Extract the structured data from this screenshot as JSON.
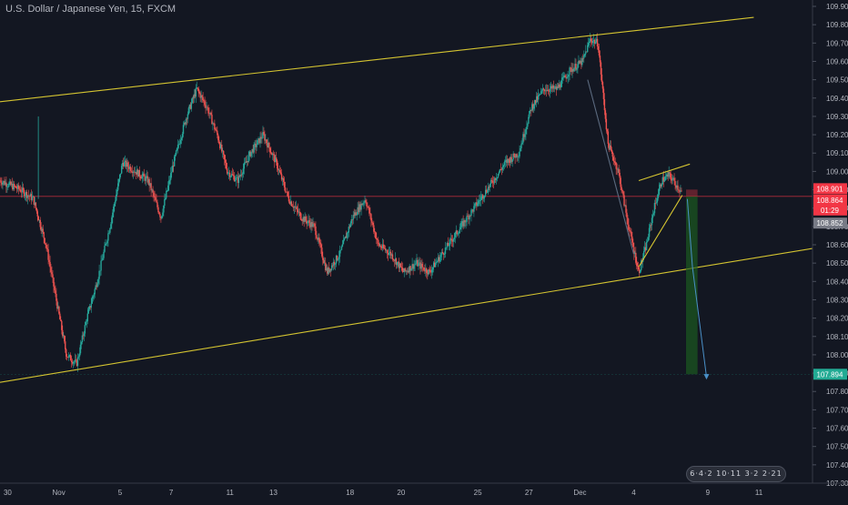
{
  "chart_data": {
    "type": "candlestick",
    "title": "U.S. Dollar / Japanese Yen, 15, FXCM",
    "symbol": "USDJPY",
    "interval": "15",
    "source": "FXCM",
    "ylim": [
      107.3,
      109.95
    ],
    "y_ticks": [
      "109.900",
      "109.800",
      "109.700",
      "109.600",
      "109.500",
      "109.400",
      "109.300",
      "109.200",
      "109.100",
      "109.000",
      "108.900",
      "108.800",
      "108.700",
      "108.600",
      "108.500",
      "108.400",
      "108.300",
      "108.200",
      "108.100",
      "108.000",
      "107.900",
      "107.800",
      "107.700",
      "107.600",
      "107.500",
      "107.400",
      "107.300"
    ],
    "x_tick_labels": [
      "30",
      "Nov",
      "5",
      "7",
      "11",
      "13",
      "18",
      "20",
      "25",
      "27",
      "Dec",
      "4",
      "9",
      "11"
    ],
    "price_markers": [
      {
        "label": "108.901",
        "value": 108.901,
        "color": "#f23645"
      },
      {
        "label": "108.864",
        "value": 108.864,
        "color": "#f23645"
      },
      {
        "label": "01:29",
        "value": 108.864,
        "color": "#f23645"
      },
      {
        "label": "108.852",
        "value": 108.852,
        "color": "#787b86"
      },
      {
        "label": "107.894",
        "value": 107.894,
        "color": "#22ab94"
      }
    ],
    "price_path": [
      [
        -0.5,
        108.95
      ],
      [
        0.3,
        108.9
      ],
      [
        0.8,
        108.85
      ],
      [
        1.3,
        108.6
      ],
      [
        1.7,
        108.3
      ],
      [
        2.1,
        108.0
      ],
      [
        2.5,
        107.95
      ],
      [
        2.9,
        108.2
      ],
      [
        3.3,
        108.4
      ],
      [
        3.8,
        108.7
      ],
      [
        4.3,
        109.05
      ],
      [
        4.8,
        109.0
      ],
      [
        5.3,
        108.95
      ],
      [
        5.8,
        108.75
      ],
      [
        6.3,
        109.05
      ],
      [
        6.8,
        109.3
      ],
      [
        7.2,
        109.45
      ],
      [
        7.6,
        109.35
      ],
      [
        8.0,
        109.2
      ],
      [
        8.4,
        109.0
      ],
      [
        8.8,
        108.95
      ],
      [
        9.3,
        109.1
      ],
      [
        9.8,
        109.2
      ],
      [
        10.3,
        109.05
      ],
      [
        10.8,
        108.85
      ],
      [
        11.3,
        108.75
      ],
      [
        11.8,
        108.7
      ],
      [
        12.3,
        108.45
      ],
      [
        12.8,
        108.55
      ],
      [
        13.3,
        108.75
      ],
      [
        13.8,
        108.85
      ],
      [
        14.3,
        108.6
      ],
      [
        14.8,
        108.55
      ],
      [
        15.3,
        108.45
      ],
      [
        15.8,
        108.5
      ],
      [
        16.3,
        108.45
      ],
      [
        16.8,
        108.55
      ],
      [
        17.3,
        108.65
      ],
      [
        17.8,
        108.75
      ],
      [
        18.3,
        108.85
      ],
      [
        18.8,
        108.95
      ],
      [
        19.3,
        109.05
      ],
      [
        19.8,
        109.1
      ],
      [
        20.3,
        109.35
      ],
      [
        20.8,
        109.45
      ],
      [
        21.3,
        109.45
      ],
      [
        21.8,
        109.55
      ],
      [
        22.3,
        109.6
      ],
      [
        22.6,
        109.72
      ],
      [
        22.9,
        109.7
      ],
      [
        23.3,
        109.15
      ],
      [
        23.7,
        109.0
      ],
      [
        24.1,
        108.7
      ],
      [
        24.5,
        108.45
      ],
      [
        24.8,
        108.6
      ],
      [
        25.1,
        108.8
      ],
      [
        25.4,
        108.95
      ],
      [
        25.7,
        108.98
      ],
      [
        26.0,
        108.92
      ],
      [
        26.2,
        108.88
      ]
    ],
    "trend_lines": [
      {
        "from": [
          -0.5,
          109.38
        ],
        "to": [
          29.0,
          109.84
        ],
        "color": "#d4c431"
      },
      {
        "from": [
          -0.5,
          107.85
        ],
        "to": [
          31.3,
          108.58
        ],
        "color": "#d4c431"
      },
      {
        "from": [
          24.5,
          108.95
        ],
        "to": [
          26.5,
          109.04
        ],
        "color": "#d4c431"
      },
      {
        "from": [
          24.5,
          108.48
        ],
        "to": [
          26.2,
          108.87
        ],
        "color": "#d4c431"
      },
      {
        "from": [
          22.5,
          109.5
        ],
        "to": [
          24.3,
          108.55
        ],
        "color": "#5b6a7f"
      }
    ],
    "position": {
      "x_from": 26.35,
      "x_to": 26.8,
      "entry": 108.864,
      "stop": 108.901,
      "target": 107.894
    },
    "projection": {
      "from": [
        26.4,
        108.85
      ],
      "mid": [
        26.6,
        108.48
      ],
      "to": [
        27.15,
        107.88
      ],
      "color": "#4a90c8"
    },
    "grid": false,
    "legend": "none"
  },
  "chart_x_range": [
    -0.5,
    31.3
  ],
  "watermark": {
    "text": "6·4·2 10·11 3·2 2·21"
  }
}
